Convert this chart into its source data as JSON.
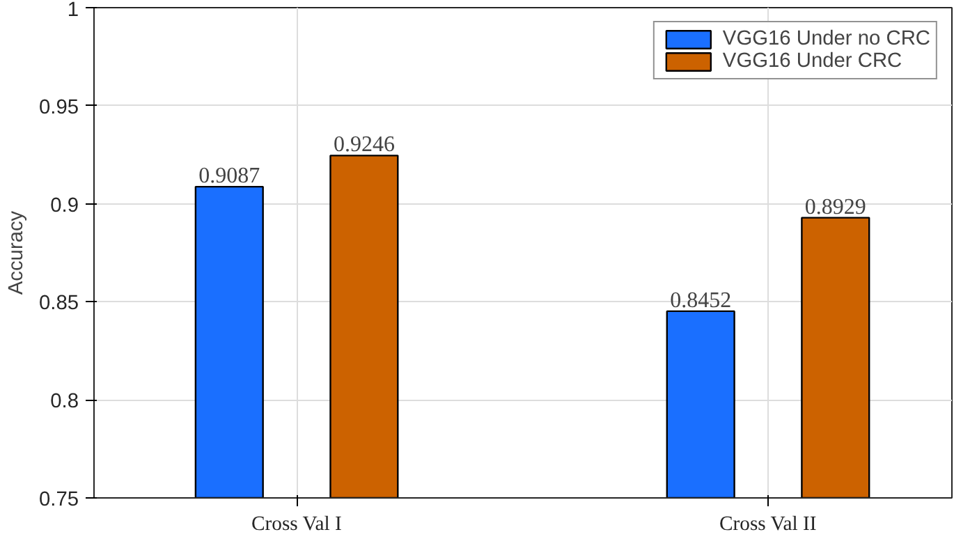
{
  "chart_data": {
    "type": "bar",
    "ylabel": "Accuracy",
    "categories": [
      "Cross Val I",
      "Cross Val II"
    ],
    "series": [
      {
        "name": "VGG16 Under no CRC",
        "color": "#1a6fff",
        "values": [
          0.9087,
          0.8452
        ]
      },
      {
        "name": "VGG16 Under CRC",
        "color": "#cc6200",
        "values": [
          0.9246,
          0.8929
        ]
      }
    ],
    "ylim": [
      0.75,
      1
    ],
    "yticks": [
      0.75,
      0.8,
      0.85,
      0.9,
      0.95,
      1
    ],
    "grid": true,
    "legend": "top right",
    "data_labels": true
  }
}
